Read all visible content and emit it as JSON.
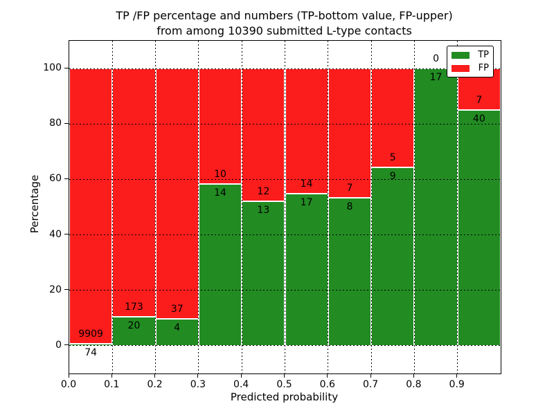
{
  "figure": {
    "title_line1": "TP /FP percentage and numbers (TP-bottom value, FP-upper)",
    "title_line2": "from among 10390 submitted L-type contacts"
  },
  "chart_data": {
    "type": "bar",
    "stacked": true,
    "title": "TP /FP percentage and numbers (TP-bottom value, FP-upper) from among 10390 submitted L-type contacts",
    "xlabel": "Predicted probability",
    "ylabel": "Percentage",
    "total_contacts": 10390,
    "xlim": [
      0.0,
      1.0
    ],
    "ylim": [
      -10,
      110
    ],
    "grid": true,
    "xtick_labels": [
      "0.0",
      "0.1",
      "0.2",
      "0.3",
      "0.4",
      "0.5",
      "0.6",
      "0.7",
      "0.8",
      "0.9"
    ],
    "ytick_values": [
      0,
      20,
      40,
      60,
      80,
      100
    ],
    "legend": {
      "position": "upper right",
      "entries": [
        {
          "label": "TP",
          "color": "#228b22"
        },
        {
          "label": "FP",
          "color": "#fb1c1c"
        }
      ]
    },
    "bins": [
      {
        "range": [
          0.0,
          0.1
        ],
        "tp": 74,
        "fp": 9909,
        "tp_pct": 0.74
      },
      {
        "range": [
          0.1,
          0.2
        ],
        "tp": 20,
        "fp": 173,
        "tp_pct": 10.36
      },
      {
        "range": [
          0.2,
          0.3
        ],
        "tp": 4,
        "fp": 37,
        "tp_pct": 9.76
      },
      {
        "range": [
          0.3,
          0.4
        ],
        "tp": 14,
        "fp": 10,
        "tp_pct": 58.33
      },
      {
        "range": [
          0.4,
          0.5
        ],
        "tp": 13,
        "fp": 12,
        "tp_pct": 52.0
      },
      {
        "range": [
          0.5,
          0.6
        ],
        "tp": 17,
        "fp": 14,
        "tp_pct": 54.84
      },
      {
        "range": [
          0.6,
          0.7
        ],
        "tp": 8,
        "fp": 7,
        "tp_pct": 53.33
      },
      {
        "range": [
          0.7,
          0.8
        ],
        "tp": 9,
        "fp": 5,
        "tp_pct": 64.29
      },
      {
        "range": [
          0.8,
          0.9
        ],
        "tp": 17,
        "fp": 0,
        "tp_pct": 100.0
      },
      {
        "range": [
          0.9,
          1.0
        ],
        "tp": 40,
        "fp": 7,
        "tp_pct": 85.11
      }
    ]
  }
}
